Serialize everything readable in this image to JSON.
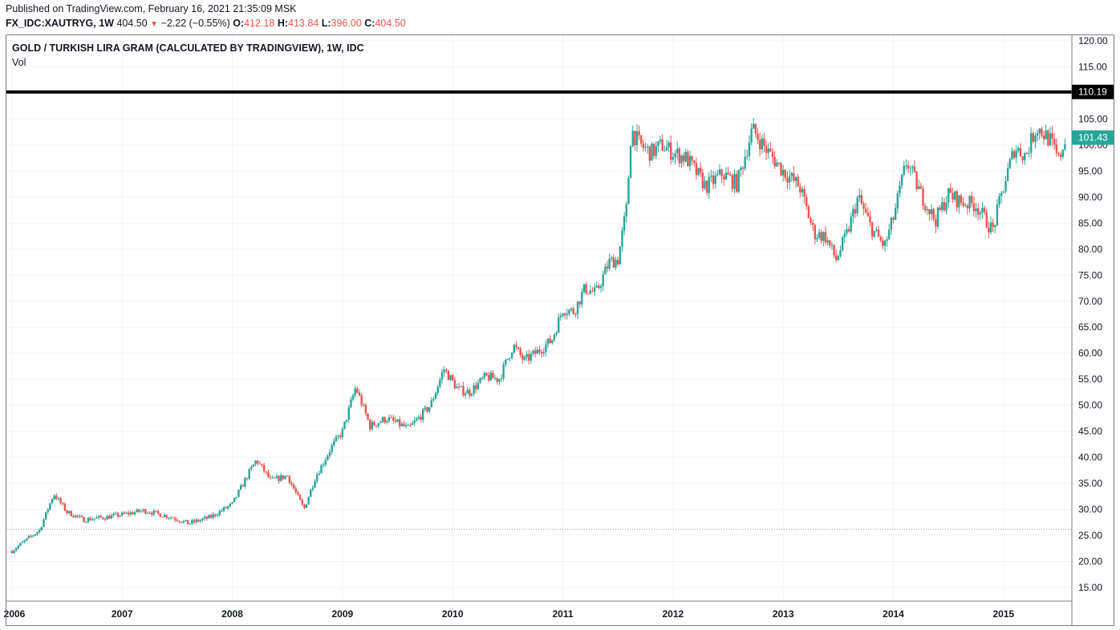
{
  "header": {
    "published": "Published on TradingView.com, February 16, 2021 21:35:09 MSK",
    "symbol": "FX_IDC:XAUTRYG, 1W",
    "last": "404.50",
    "change": "−2.22 (−0.55%)",
    "o_label": "O:",
    "o_value": "412.18",
    "h_label": "H:",
    "h_value": "413.84",
    "l_label": "L:",
    "l_value": "396.00",
    "c_label": "C:",
    "c_value": "404.50"
  },
  "legend": {
    "title": "GOLD / TURKISH LIRA GRAM (CALCULATED BY TRADINGVIEW), 1W, IDC",
    "vol": "Vol"
  },
  "colors": {
    "up": "#26a69a",
    "down": "#ef5350",
    "grid": "#f0f3fa",
    "axis_line": "#787b86",
    "hline": "#000000",
    "badge_hline": "#000000",
    "badge_last": "#26a69a",
    "dotted": "#9598a1"
  },
  "chart_data": {
    "type": "candlestick",
    "title": "GOLD / TURKISH LIRA GRAM (CALCULATED BY TRADINGVIEW), 1W, IDC",
    "x_start": 2006.0,
    "x_end": 2015.6,
    "ylim": [
      12.5,
      121.5
    ],
    "y_ticks": [
      "120.00",
      "115.00",
      "110.00",
      "105.00",
      "100.00",
      "95.00",
      "90.00",
      "85.00",
      "80.00",
      "75.00",
      "70.00",
      "65.00",
      "60.00",
      "55.00",
      "50.00",
      "45.00",
      "40.00",
      "35.00",
      "30.00",
      "25.00",
      "20.00",
      "15.00"
    ],
    "x_ticks": [
      {
        "label": "2006",
        "value": 2006.0
      },
      {
        "label": "2007",
        "value": 2007.0
      },
      {
        "label": "2008",
        "value": 2008.0
      },
      {
        "label": "2009",
        "value": 2009.0
      },
      {
        "label": "2010",
        "value": 2010.0
      },
      {
        "label": "2011",
        "value": 2011.0
      },
      {
        "label": "2012",
        "value": 2012.0
      },
      {
        "label": "2013",
        "value": 2013.0
      },
      {
        "label": "2014",
        "value": 2014.0
      },
      {
        "label": "2015",
        "value": 2015.0
      }
    ],
    "horizontal_line": {
      "value": 110.19,
      "label": "110.19"
    },
    "last_price": {
      "value": 101.43,
      "label": "101.43"
    },
    "dotted_line": {
      "value": 26.2
    },
    "grid": true,
    "weekly_close_anchors": [
      {
        "t": 2006.0,
        "c": 22.0
      },
      {
        "t": 2006.12,
        "c": 24.0
      },
      {
        "t": 2006.25,
        "c": 26.0
      },
      {
        "t": 2006.38,
        "c": 33.0
      },
      {
        "t": 2006.5,
        "c": 29.5
      },
      {
        "t": 2006.65,
        "c": 28.0
      },
      {
        "t": 2006.85,
        "c": 28.5
      },
      {
        "t": 2007.0,
        "c": 29.0
      },
      {
        "t": 2007.2,
        "c": 29.8
      },
      {
        "t": 2007.45,
        "c": 28.5
      },
      {
        "t": 2007.6,
        "c": 27.3
      },
      {
        "t": 2007.8,
        "c": 28.5
      },
      {
        "t": 2008.0,
        "c": 31.0
      },
      {
        "t": 2008.15,
        "c": 37.0
      },
      {
        "t": 2008.22,
        "c": 39.5
      },
      {
        "t": 2008.35,
        "c": 35.5
      },
      {
        "t": 2008.5,
        "c": 36.5
      },
      {
        "t": 2008.65,
        "c": 30.0
      },
      {
        "t": 2008.75,
        "c": 36.0
      },
      {
        "t": 2008.9,
        "c": 42.0
      },
      {
        "t": 2009.0,
        "c": 45.0
      },
      {
        "t": 2009.12,
        "c": 53.5
      },
      {
        "t": 2009.25,
        "c": 46.0
      },
      {
        "t": 2009.4,
        "c": 47.5
      },
      {
        "t": 2009.6,
        "c": 45.5
      },
      {
        "t": 2009.8,
        "c": 50.0
      },
      {
        "t": 2009.92,
        "c": 57.0
      },
      {
        "t": 2010.05,
        "c": 53.0
      },
      {
        "t": 2010.15,
        "c": 52.5
      },
      {
        "t": 2010.3,
        "c": 55.5
      },
      {
        "t": 2010.42,
        "c": 55.0
      },
      {
        "t": 2010.55,
        "c": 61.5
      },
      {
        "t": 2010.65,
        "c": 58.5
      },
      {
        "t": 2010.75,
        "c": 60.0
      },
      {
        "t": 2010.9,
        "c": 62.5
      },
      {
        "t": 2011.0,
        "c": 68.5
      },
      {
        "t": 2011.1,
        "c": 68.0
      },
      {
        "t": 2011.2,
        "c": 72.5
      },
      {
        "t": 2011.3,
        "c": 71.5
      },
      {
        "t": 2011.42,
        "c": 77.5
      },
      {
        "t": 2011.5,
        "c": 78.0
      },
      {
        "t": 2011.58,
        "c": 88.0
      },
      {
        "t": 2011.62,
        "c": 103.0
      },
      {
        "t": 2011.7,
        "c": 100.0
      },
      {
        "t": 2011.8,
        "c": 98.5
      },
      {
        "t": 2011.9,
        "c": 100.0
      },
      {
        "t": 2012.0,
        "c": 98.5
      },
      {
        "t": 2012.12,
        "c": 97.5
      },
      {
        "t": 2012.3,
        "c": 92.0
      },
      {
        "t": 2012.45,
        "c": 94.5
      },
      {
        "t": 2012.58,
        "c": 92.5
      },
      {
        "t": 2012.72,
        "c": 103.0
      },
      {
        "t": 2012.85,
        "c": 99.0
      },
      {
        "t": 2013.0,
        "c": 95.0
      },
      {
        "t": 2013.15,
        "c": 92.0
      },
      {
        "t": 2013.28,
        "c": 83.0
      },
      {
        "t": 2013.38,
        "c": 82.5
      },
      {
        "t": 2013.48,
        "c": 78.0
      },
      {
        "t": 2013.58,
        "c": 83.0
      },
      {
        "t": 2013.68,
        "c": 90.0
      },
      {
        "t": 2013.8,
        "c": 84.0
      },
      {
        "t": 2013.92,
        "c": 80.5
      },
      {
        "t": 2014.0,
        "c": 86.0
      },
      {
        "t": 2014.12,
        "c": 97.0
      },
      {
        "t": 2014.25,
        "c": 90.5
      },
      {
        "t": 2014.38,
        "c": 85.5
      },
      {
        "t": 2014.5,
        "c": 90.5
      },
      {
        "t": 2014.62,
        "c": 89.0
      },
      {
        "t": 2014.75,
        "c": 88.5
      },
      {
        "t": 2014.9,
        "c": 83.5
      },
      {
        "t": 2015.0,
        "c": 92.0
      },
      {
        "t": 2015.1,
        "c": 99.5
      },
      {
        "t": 2015.2,
        "c": 98.0
      },
      {
        "t": 2015.3,
        "c": 103.5
      },
      {
        "t": 2015.42,
        "c": 101.0
      },
      {
        "t": 2015.5,
        "c": 97.0
      },
      {
        "t": 2015.56,
        "c": 101.43
      }
    ]
  }
}
